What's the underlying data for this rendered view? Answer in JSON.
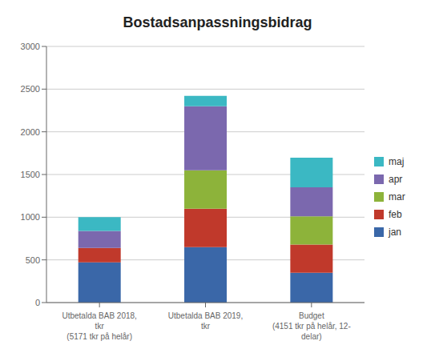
{
  "chart_data": {
    "type": "bar",
    "title": "Bostadsanpassningsbidrag",
    "categories": [
      "Utbetalda BAB 2018,\ntkr\n(5171 tkr på helår)",
      "Utbetalda BAB 2019,\ntkr",
      "Budget\n(4151 tkr på helår, 12-\ndelar)"
    ],
    "series": [
      {
        "name": "jan",
        "color": "#3A67A8",
        "values": [
          470,
          650,
          350
        ]
      },
      {
        "name": "feb",
        "color": "#C0392B",
        "values": [
          170,
          450,
          330
        ]
      },
      {
        "name": "mar",
        "color": "#8DB33A",
        "values": [
          0,
          450,
          330
        ]
      },
      {
        "name": "apr",
        "color": "#7B68AE",
        "values": [
          200,
          750,
          340
        ]
      },
      {
        "name": "maj",
        "color": "#3BB8C3",
        "values": [
          160,
          120,
          346
        ]
      }
    ],
    "stacked": true,
    "ylim": [
      0,
      3000
    ],
    "yticks": [
      0,
      500,
      1000,
      1500,
      2000,
      2500,
      3000
    ],
    "grid": true,
    "legend": "right"
  }
}
